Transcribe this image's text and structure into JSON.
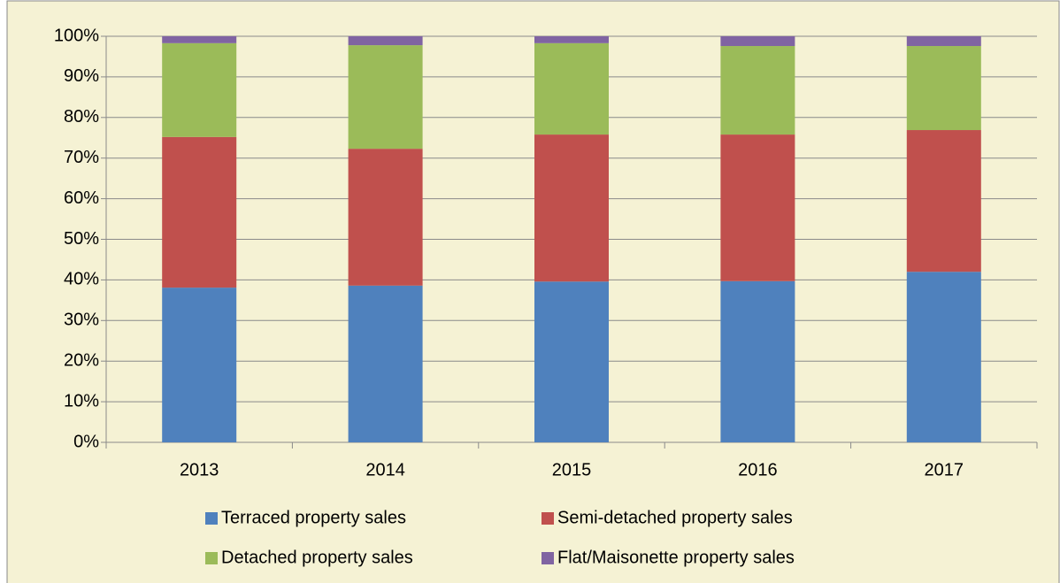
{
  "chart_data": {
    "type": "stacked_bar",
    "categories": [
      "2013",
      "2014",
      "2015",
      "2016",
      "2017"
    ],
    "series": [
      {
        "name": "Terraced property sales",
        "color": "#4f81bd",
        "values": [
          38.1,
          38.6,
          39.6,
          39.7,
          42.0
        ]
      },
      {
        "name": "Semi-detached property sales",
        "color": "#c0504d",
        "values": [
          37.1,
          33.7,
          36.2,
          36.1,
          34.9
        ]
      },
      {
        "name": "Detached property sales",
        "color": "#9bbb59",
        "values": [
          23.1,
          25.5,
          22.5,
          21.8,
          20.7
        ]
      },
      {
        "name": "Flat/Maisonette property sales",
        "color": "#8064a2",
        "values": [
          1.7,
          2.2,
          1.7,
          2.4,
          2.4
        ]
      }
    ],
    "ylim": [
      0,
      100
    ],
    "yticks": [
      {
        "value": 0,
        "label": "0%"
      },
      {
        "value": 10,
        "label": "10%"
      },
      {
        "value": 20,
        "label": "20%"
      },
      {
        "value": 30,
        "label": "30%"
      },
      {
        "value": 40,
        "label": "40%"
      },
      {
        "value": 50,
        "label": "50%"
      },
      {
        "value": 60,
        "label": "60%"
      },
      {
        "value": 70,
        "label": "70%"
      },
      {
        "value": 80,
        "label": "80%"
      },
      {
        "value": 90,
        "label": "90%"
      },
      {
        "value": 100,
        "label": "100%"
      }
    ],
    "grid": true,
    "legend": "bottom"
  }
}
